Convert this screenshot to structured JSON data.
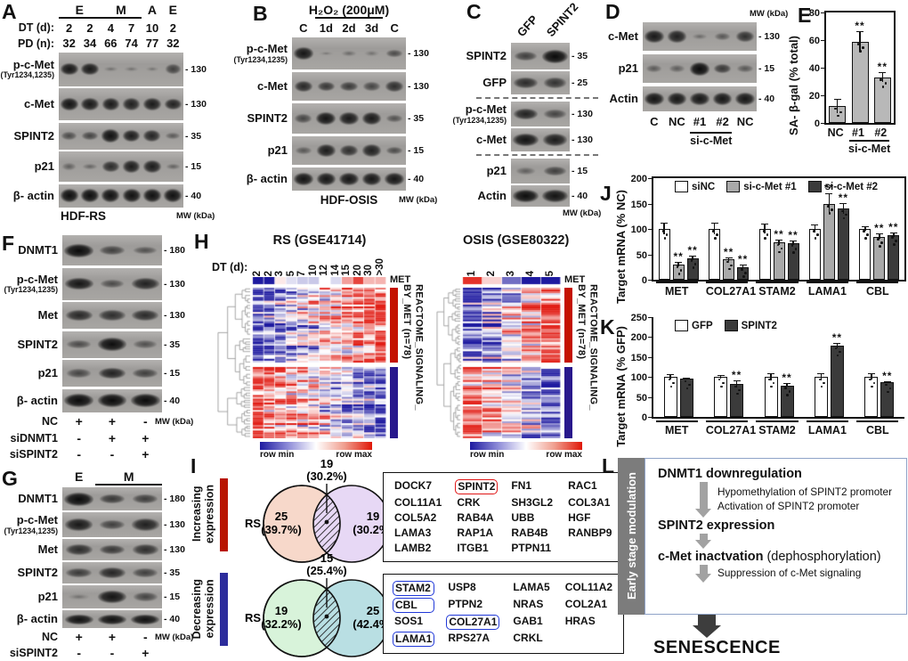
{
  "panels": {
    "A": {
      "letter": "A",
      "groups": [
        {
          "label": "E",
          "start": 0,
          "span": 2,
          "line": true
        },
        {
          "label": "M",
          "start": 2,
          "span": 2,
          "line": true
        },
        {
          "label": "A",
          "start": 4,
          "span": 1,
          "line": false
        },
        {
          "label": "E",
          "start": 5,
          "span": 1,
          "line": false
        }
      ],
      "header_rows": [
        {
          "label": "DT (d):",
          "values": [
            "2",
            "2",
            "4",
            "7",
            "10",
            "2"
          ]
        },
        {
          "label": "PD (n):",
          "values": [
            "32",
            "34",
            "66",
            "74",
            "77",
            "32"
          ]
        }
      ],
      "rows": [
        {
          "name": "p-c-Met",
          "sub": "(Tyr1234,1235)",
          "mw": "130",
          "bands": [
            0.9,
            0.88,
            0.14,
            0.12,
            0.1,
            0.55
          ]
        },
        {
          "name": "c-Met",
          "mw": "130",
          "bands": [
            0.92,
            0.88,
            0.86,
            0.82,
            0.86,
            0.8
          ]
        },
        {
          "name": "SPINT2",
          "mw": "35",
          "bands": [
            0.45,
            0.5,
            0.95,
            0.85,
            0.78,
            0.32
          ]
        },
        {
          "name": "p21",
          "mw": "15",
          "bands": [
            0.28,
            0.22,
            0.72,
            0.85,
            0.85,
            0.25
          ]
        },
        {
          "name": "β- actin",
          "mw": "40",
          "bands": [
            0.97,
            0.97,
            0.95,
            0.95,
            0.95,
            0.95
          ]
        }
      ],
      "footer_center": "HDF-RS",
      "footer_right": "MW (kDa)"
    },
    "B": {
      "letter": "B",
      "groups": [
        {
          "label": "H₂O₂ (200μM)",
          "start": 1,
          "span": 3,
          "line": true
        }
      ],
      "header_rows": [
        {
          "label": "",
          "values": [
            "C",
            "1d",
            "2d",
            "3d",
            "C"
          ]
        }
      ],
      "rows": [
        {
          "name": "p-c-Met",
          "sub": "(Tyr1234,1235)",
          "mw": "130",
          "bands": [
            0.9,
            0.08,
            0.18,
            0.12,
            0.45
          ]
        },
        {
          "name": "c-Met",
          "mw": "130",
          "bands": [
            0.75,
            0.62,
            0.6,
            0.5,
            0.7
          ]
        },
        {
          "name": "SPINT2",
          "mw": "35",
          "bands": [
            0.5,
            0.92,
            0.88,
            0.88,
            0.4
          ]
        },
        {
          "name": "p21",
          "mw": "15",
          "bands": [
            0.35,
            0.85,
            0.7,
            0.82,
            0.45
          ]
        },
        {
          "name": "β- actin",
          "mw": "40",
          "bands": [
            0.92,
            0.9,
            0.9,
            0.9,
            0.9
          ]
        }
      ],
      "footer_center": "HDF-OSIS",
      "footer_right": "MW (kDa)"
    },
    "C": {
      "letter": "C",
      "rot_labels": [
        "GFP",
        "SPINT2"
      ],
      "rows": [
        {
          "name": "SPINT2",
          "mw": "35",
          "bands": [
            0.55,
            1.0
          ]
        },
        {
          "name": "GFP",
          "mw": "25",
          "bands": [
            0.72,
            0.65
          ],
          "divider_after": true
        },
        {
          "name": "p-c-Met",
          "sub": "(Tyr1234,1235)",
          "mw": "130",
          "bands": [
            0.8,
            0.5
          ]
        },
        {
          "name": "c-Met",
          "mw": "130",
          "bands": [
            0.92,
            0.85
          ],
          "divider_after": true
        },
        {
          "name": "p21",
          "mw": "15",
          "bands": [
            0.28,
            0.55
          ]
        },
        {
          "name": "Actin",
          "mw": "40",
          "bands": [
            0.97,
            0.92
          ]
        }
      ],
      "footer_right": "MW (kDa)"
    },
    "D": {
      "letter": "D",
      "mw_top": "MW (kDa)",
      "rows": [
        {
          "name": "c-Met",
          "mw": "130",
          "bands": [
            0.88,
            0.82,
            0.18,
            0.35,
            0.68
          ]
        },
        {
          "name": "p21",
          "mw": "15",
          "bands": [
            0.32,
            0.3,
            1.0,
            0.62,
            0.35
          ]
        },
        {
          "name": "Actin",
          "mw": "40",
          "bands": [
            0.92,
            0.9,
            0.9,
            0.9,
            0.9
          ]
        }
      ],
      "lane_labels": [
        "C",
        "NC",
        "#1",
        "#2",
        "NC"
      ],
      "bracket": {
        "label": "si-c-Met",
        "start": 2,
        "span": 2
      }
    },
    "E": {
      "letter": "E"
    },
    "F": {
      "letter": "F",
      "rows": [
        {
          "name": "DNMT1",
          "mw": "180",
          "bands": [
            1.0,
            0.55,
            0.4
          ]
        },
        {
          "name": "p-c-Met",
          "sub": "(Tyr1234,1235)",
          "mw": "130",
          "bands": [
            0.9,
            0.45,
            0.8
          ]
        },
        {
          "name": "Met",
          "mw": "130",
          "bands": [
            0.75,
            0.7,
            0.72
          ]
        },
        {
          "name": "SPINT2",
          "mw": "35",
          "bands": [
            0.45,
            0.97,
            0.4
          ]
        },
        {
          "name": "p21",
          "mw": "15",
          "bands": [
            0.5,
            0.8,
            0.55
          ]
        },
        {
          "name": "β- actin",
          "mw": "40",
          "bands": [
            1.0,
            1.0,
            1.0
          ]
        }
      ],
      "conditions": [
        {
          "label": "NC",
          "values": [
            "+",
            "+",
            "-"
          ],
          "note": "MW (kDa)"
        },
        {
          "label": "siDNMT1",
          "values": [
            "-",
            "+",
            "+"
          ]
        },
        {
          "label": "siSPINT2",
          "values": [
            "-",
            "-",
            "+"
          ]
        }
      ]
    },
    "G": {
      "letter": "G",
      "groups": [
        {
          "label": "E",
          "start": 0,
          "span": 1,
          "line": false
        },
        {
          "label": "M",
          "start": 1,
          "span": 2,
          "line": true
        }
      ],
      "rows": [
        {
          "name": "DNMT1",
          "mw": "180",
          "bands": [
            1.0,
            0.62,
            0.58
          ]
        },
        {
          "name": "p-c-Met",
          "sub": "(Tyr1234,1235)",
          "mw": "130",
          "bands": [
            0.88,
            0.55,
            0.82
          ]
        },
        {
          "name": "Met",
          "mw": "130",
          "bands": [
            0.72,
            0.62,
            0.7
          ]
        },
        {
          "name": "SPINT2",
          "mw": "35",
          "bands": [
            0.6,
            0.78,
            0.55
          ]
        },
        {
          "name": "p21",
          "mw": "15",
          "bands": [
            0.12,
            0.92,
            0.5
          ]
        },
        {
          "name": "β- actin",
          "mw": "40",
          "bands": [
            0.95,
            0.95,
            0.95
          ]
        }
      ],
      "conditions": [
        {
          "label": "NC",
          "values": [
            "+",
            "+",
            "-"
          ],
          "note": "MW (kDa)"
        },
        {
          "label": "siSPINT2",
          "values": [
            "-",
            "-",
            "+"
          ]
        }
      ]
    },
    "H": {
      "letter": "H"
    },
    "I": {
      "letter": "I",
      "venns": [
        {
          "side_label": "Increasing expression",
          "bar_color": "#b81500",
          "left_label": "RS",
          "left_count": "25",
          "left_pct": "(39.7%)",
          "left_fill": "#f7d8ca",
          "right_label": "OSIS",
          "right_count": "19",
          "right_pct": "(30.2%)",
          "right_fill": "#e7d8f5",
          "overlap_count": "19",
          "overlap_pct": "(30.2%)"
        },
        {
          "side_label": "Decreasing expression",
          "bar_color": "#2c2c9c",
          "left_label": "RS",
          "left_count": "19",
          "left_pct": "(32.2%)",
          "left_fill": "#d8f3da",
          "right_label": "OSIS",
          "right_count": "25",
          "right_pct": "(42.4%)",
          "right_fill": "#b9dfe3",
          "overlap_count": "15",
          "overlap_pct": "(25.4%)"
        }
      ],
      "gene_boxes": [
        {
          "highlight_color": "#e01616",
          "genes": [
            "DOCK7",
            "SPINT2",
            "FN1",
            "RAC1",
            "COL11A1",
            "CRK",
            "SH3GL2",
            "COL3A1",
            "COL5A2",
            "RAB4A",
            "UBB",
            "HGF",
            "LAMA3",
            "RAP1A",
            "RAB4B",
            "RANBP9",
            "LAMB2",
            "ITGB1",
            "PTPN11"
          ],
          "highlighted": [
            "SPINT2"
          ]
        },
        {
          "highlight_color": "#2038d8",
          "genes": [
            "STAM2",
            "USP8",
            "LAMA5",
            "COL11A2",
            "CBL",
            "PTPN2",
            "NRAS",
            "COL2A1",
            "SOS1",
            "COL27A1",
            "GAB1",
            "HRAS",
            "LAMA1",
            "RPS27A",
            "CRKL"
          ],
          "highlighted": [
            "STAM2",
            "CBL",
            "COL27A1",
            "LAMA1"
          ]
        }
      ]
    },
    "J": {
      "letter": "J"
    },
    "K": {
      "letter": "K"
    },
    "L": {
      "letter": "L",
      "side_label": "Early stage modulation",
      "steps": [
        {
          "type": "title",
          "text": "DNMT1 downregulation"
        },
        {
          "type": "arrow",
          "notes": [
            "Hypomethylation of SPINT2 promoter",
            "Activation of SPINT2 promoter"
          ]
        },
        {
          "type": "title",
          "text": "SPINT2 expression"
        },
        {
          "type": "arrow",
          "notes": []
        },
        {
          "type": "title",
          "text": "c-Met inactvation",
          "suffix": " (dephosphorylation)"
        },
        {
          "type": "arrow",
          "notes": [
            "Suppression of c-Met signaling"
          ]
        }
      ],
      "final_label": "SENESCENCE"
    }
  },
  "chart_data": [
    {
      "id": "E",
      "type": "bar",
      "ylabel": "SA- β-gal (% total)",
      "ylim": [
        0,
        80
      ],
      "yticks": [
        0,
        20,
        40,
        60,
        80
      ],
      "categories": [
        "NC",
        "#1",
        "#2"
      ],
      "values": [
        12,
        59,
        33
      ],
      "errors": [
        5,
        7,
        3
      ],
      "sig": [
        "",
        "**",
        "**"
      ],
      "bar_color": "#b8b8b8",
      "group_label": {
        "label": "si-c-Met",
        "start": 1,
        "span": 2
      }
    },
    {
      "id": "J",
      "type": "bar",
      "ylabel": "Target mRNA (% NC)",
      "ylim": [
        0,
        200
      ],
      "yticks": [
        0,
        50,
        100,
        150,
        200
      ],
      "categories": [
        "MET",
        "COL27A1",
        "STAM2",
        "LAMA1",
        "CBL"
      ],
      "series": [
        {
          "name": "siNC",
          "color": "#ffffff",
          "values": [
            100,
            100,
            100,
            100,
            100
          ],
          "errors": [
            10,
            10,
            9,
            7,
            3
          ],
          "sig": [
            "",
            "",
            "",
            "",
            ""
          ]
        },
        {
          "name": "si-c-Met #1",
          "color": "#a9a9a9",
          "values": [
            30,
            40,
            73,
            150,
            85
          ],
          "errors": [
            3,
            3,
            4,
            18,
            4
          ],
          "sig": [
            "**",
            "**",
            "**",
            "**",
            "**"
          ]
        },
        {
          "name": "si-c-Met #2",
          "color": "#3b3b3b",
          "values": [
            42,
            25,
            72,
            140,
            88
          ],
          "errors": [
            3,
            3,
            4,
            10,
            4
          ],
          "sig": [
            "**",
            "**",
            "**",
            "**",
            "**"
          ]
        }
      ]
    },
    {
      "id": "K",
      "type": "bar",
      "ylabel": "Target mRNA (% GFP)",
      "ylim": [
        0,
        250
      ],
      "yticks": [
        0,
        50,
        100,
        150,
        200,
        250
      ],
      "categories": [
        "MET",
        "COL27A1",
        "STAM2",
        "LAMA1",
        "CBL"
      ],
      "series": [
        {
          "name": "GFP",
          "color": "#ffffff",
          "values": [
            100,
            100,
            100,
            100,
            100
          ],
          "errors": [
            6,
            3,
            8,
            8,
            7
          ],
          "sig": [
            "",
            "",
            "",
            "",
            ""
          ]
        },
        {
          "name": "SPINT2",
          "color": "#3b3b3b",
          "values": [
            95,
            82,
            79,
            178,
            86
          ],
          "errors": [
            2,
            8,
            4,
            5,
            2
          ],
          "sig": [
            "",
            "**",
            "**",
            "**",
            "**"
          ]
        }
      ]
    },
    {
      "id": "H_RS",
      "type": "heatmap",
      "title": "RS (GSE41714)",
      "col_label": "DT (d):",
      "columns": [
        "2",
        "2",
        "3",
        "5",
        "7",
        "10",
        "12",
        "14",
        "15",
        "20",
        "30",
        ">30"
      ],
      "met_row_label": "MET",
      "met_trend": "up",
      "row_groups": [
        {
          "n": 40,
          "bar_color": "#c41200",
          "trend": "up"
        },
        {
          "n": 38,
          "bar_color": "#28188c",
          "trend": "down"
        }
      ],
      "side_label_lines": [
        "REACTOME_SIGNALING_",
        "BY_MET (n=78)"
      ],
      "legend_min": "row min",
      "legend_max": "row max",
      "seed": 7
    },
    {
      "id": "H_OSIS",
      "type": "heatmap",
      "title": "OSIS (GSE80322)",
      "columns": [
        "1",
        "2",
        "3",
        "4",
        "5"
      ],
      "met_row_label": "MET",
      "met_trend": "down",
      "row_groups": [
        {
          "n": 40,
          "bar_color": "#c41200",
          "trend": "up"
        },
        {
          "n": 38,
          "bar_color": "#28188c",
          "trend": "down"
        }
      ],
      "side_label_lines": [
        "REACTOME_SIGNALING_",
        "BY_MET (n=78)"
      ],
      "legend_min": "row min",
      "legend_max": "row max",
      "seed": 13
    }
  ]
}
